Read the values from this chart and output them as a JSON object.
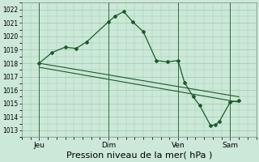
{
  "background_color": "#cce8d8",
  "grid_color": "#99ccaa",
  "line_color": "#1a5c28",
  "marker_color": "#1a5c28",
  "ylim": [
    1012.5,
    1022.5
  ],
  "yticks": [
    1013,
    1014,
    1015,
    1016,
    1017,
    1018,
    1019,
    1020,
    1021,
    1022
  ],
  "xlabel": "Pression niveau de la mer( hPa )",
  "xlabel_fontsize": 8,
  "xtick_labels": [
    "Jeu",
    "Dim",
    "Ven",
    "Sam"
  ],
  "xtick_positions": [
    8,
    40,
    72,
    96
  ],
  "series1_x": [
    8,
    14,
    20,
    25,
    30,
    40,
    43,
    47,
    51,
    56,
    62,
    67,
    72,
    75,
    79,
    82,
    87,
    89,
    91,
    96,
    100
  ],
  "series1_y": [
    1018.0,
    1018.8,
    1019.2,
    1019.1,
    1019.6,
    1021.1,
    1021.5,
    1021.85,
    1021.1,
    1020.35,
    1018.2,
    1018.1,
    1018.2,
    1016.55,
    1015.5,
    1014.85,
    1013.35,
    1013.4,
    1013.65,
    1015.1,
    1015.2
  ],
  "series2_x": [
    8,
    100
  ],
  "series2_y": [
    1018.0,
    1015.5
  ],
  "series3_x": [
    8,
    100
  ],
  "series3_y": [
    1017.7,
    1015.1
  ],
  "vline_x": [
    8,
    40,
    72,
    96
  ],
  "xlim": [
    0,
    108
  ],
  "figsize": [
    3.2,
    2.0
  ],
  "dpi": 100
}
